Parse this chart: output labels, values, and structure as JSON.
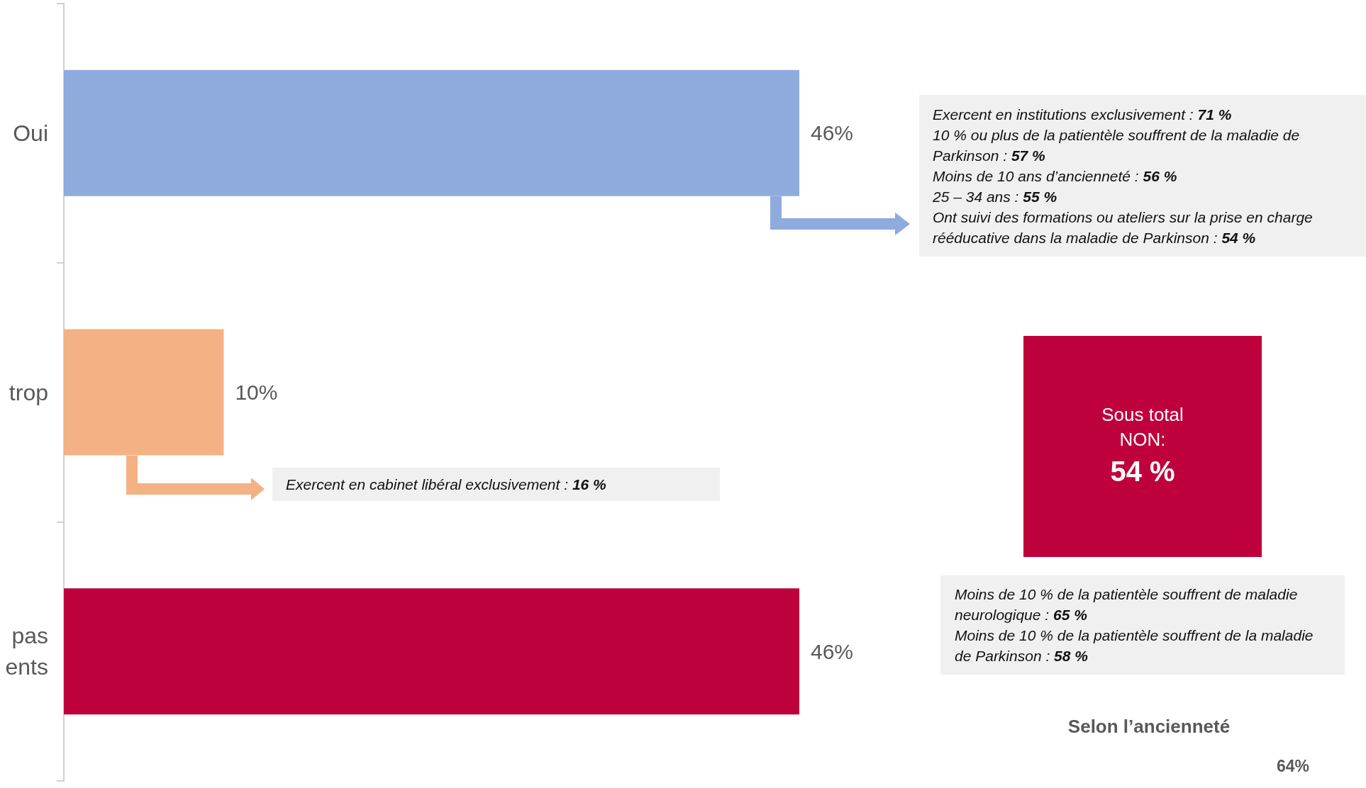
{
  "chart_data": {
    "type": "bar",
    "orientation": "horizontal",
    "categories": [
      "Oui",
      "trop",
      "pas\nents"
    ],
    "values": [
      46,
      10,
      46
    ],
    "colors": [
      "#8faadc",
      "#f4b183",
      "#be003c"
    ],
    "value_labels": [
      "46%",
      "10%",
      "46%"
    ],
    "annotations": [
      "Exercent en institutions exclusivement : 71 %\n10 % ou plus de la patientèle souffrent de la maladie de Parkinson : 57 %\nMoins de 10 ans d’ancienneté : 56 %\n25 – 34 ans : 55 %\nOnt suivi des formations ou ateliers sur la prise en charge rééducative dans la maladie de Parkinson : 54 %",
      "Exercent en cabinet libéral exclusivement : 16 %",
      "Sous total\nNON:\n54 %",
      "Moins de 10 % de la patientèle souffrent de maladie neurologique : 65 %\nMoins de 10 % de la patientèle souffrent de la maladie de Parkinson : 58 %",
      "Selon l’ancienneté",
      "64%"
    ],
    "grid": false
  }
}
